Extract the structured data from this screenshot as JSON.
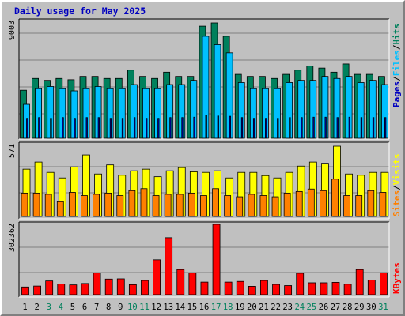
{
  "title": "Daily usage for May 2025",
  "colors": {
    "hits": "#00805c",
    "files": "#00c0ff",
    "pages": "#0000c0",
    "visits": "#ff8000",
    "sites": "#ffff00",
    "kbytes": "#ff0000",
    "weekend": "#00805c",
    "weekday": "#000000",
    "background": "#c0c0c0"
  },
  "chart_data": [
    {
      "type": "bar",
      "panel": "hits-files-pages",
      "ymax_label": "9003",
      "ylim": [
        0,
        9003
      ],
      "legend": [
        {
          "text": "Hits",
          "color": "#00805c"
        },
        {
          "text": "Files",
          "color": "#00c0ff"
        },
        {
          "text": "Pages",
          "color": "#0000c0"
        }
      ],
      "separator": "/",
      "categories": [
        "1",
        "2",
        "3",
        "4",
        "5",
        "6",
        "7",
        "8",
        "9",
        "10",
        "11",
        "12",
        "13",
        "14",
        "15",
        "16",
        "17",
        "18",
        "19",
        "20",
        "21",
        "22",
        "23",
        "24",
        "25",
        "26",
        "27",
        "28",
        "29",
        "30",
        "31"
      ],
      "weekend_days": [
        "3",
        "4",
        "10",
        "11",
        "17",
        "18",
        "24",
        "25",
        "31"
      ],
      "series": [
        {
          "name": "Hits",
          "values": [
            3750,
            4670,
            4520,
            4670,
            4570,
            4830,
            4830,
            4670,
            4670,
            5320,
            4830,
            4670,
            5160,
            4830,
            4830,
            8750,
            9003,
            7960,
            4990,
            4830,
            4830,
            4670,
            4990,
            5320,
            5640,
            5480,
            5160,
            5800,
            4990,
            4990,
            4830
          ]
        },
        {
          "name": "Files",
          "values": [
            2650,
            3870,
            4040,
            3870,
            3700,
            3870,
            4040,
            3870,
            3870,
            4190,
            3870,
            3870,
            4190,
            4190,
            4520,
            7960,
            7310,
            6670,
            4350,
            3870,
            3870,
            3870,
            4350,
            4520,
            4520,
            4830,
            4670,
            4830,
            4350,
            4520,
            4190
          ]
        },
        {
          "name": "Pages",
          "values": [
            1560,
            1620,
            1560,
            1620,
            1560,
            1620,
            1620,
            1560,
            1560,
            1620,
            1560,
            1560,
            1620,
            1620,
            1650,
            1780,
            1740,
            1720,
            1620,
            1560,
            1560,
            1560,
            1620,
            1620,
            1650,
            1650,
            1620,
            1650,
            1620,
            1620,
            1620
          ]
        }
      ]
    },
    {
      "type": "bar",
      "panel": "visits-sites",
      "ymax_label": "571",
      "ylim": [
        0,
        571
      ],
      "legend": [
        {
          "text": "Visits",
          "color": "#ffff00"
        },
        {
          "text": "Sites",
          "color": "#ff8000"
        }
      ],
      "separator": "/",
      "categories": [
        "1",
        "2",
        "3",
        "4",
        "5",
        "6",
        "7",
        "8",
        "9",
        "10",
        "11",
        "12",
        "13",
        "14",
        "15",
        "16",
        "17",
        "18",
        "19",
        "20",
        "21",
        "22",
        "23",
        "24",
        "25",
        "26",
        "27",
        "28",
        "29",
        "30",
        "31"
      ],
      "series": [
        {
          "name": "Visits",
          "values": [
            384,
            442,
            358,
            313,
            403,
            500,
            345,
            419,
            335,
            371,
            384,
            323,
            371,
            397,
            363,
            358,
            371,
            313,
            358,
            358,
            332,
            313,
            358,
            409,
            442,
            432,
            571,
            345,
            335,
            358,
            358
          ]
        },
        {
          "name": "Sites",
          "values": [
            190,
            190,
            180,
            120,
            196,
            170,
            180,
            190,
            170,
            210,
            226,
            170,
            180,
            180,
            190,
            170,
            226,
            170,
            160,
            180,
            170,
            160,
            190,
            203,
            223,
            210,
            303,
            170,
            170,
            210,
            196
          ]
        }
      ]
    },
    {
      "type": "bar",
      "panel": "kbytes",
      "ymax_label": "302362",
      "ylim": [
        0,
        302362
      ],
      "legend": [
        {
          "text": "KBytes",
          "color": "#ff0000"
        }
      ],
      "categories": [
        "1",
        "2",
        "3",
        "4",
        "5",
        "6",
        "7",
        "8",
        "9",
        "10",
        "11",
        "12",
        "13",
        "14",
        "15",
        "16",
        "17",
        "18",
        "19",
        "20",
        "21",
        "22",
        "23",
        "24",
        "25",
        "26",
        "27",
        "28",
        "29",
        "30",
        "31"
      ],
      "series": [
        {
          "name": "KBytes",
          "values": [
            33000,
            37000,
            59000,
            46000,
            42000,
            48000,
            93000,
            67000,
            68000,
            43000,
            61000,
            150000,
            245000,
            108000,
            93000,
            54000,
            302362,
            54000,
            57000,
            36000,
            61000,
            44000,
            39000,
            92000,
            51000,
            51000,
            53000,
            45000,
            108000,
            63000,
            94000
          ]
        }
      ]
    }
  ]
}
